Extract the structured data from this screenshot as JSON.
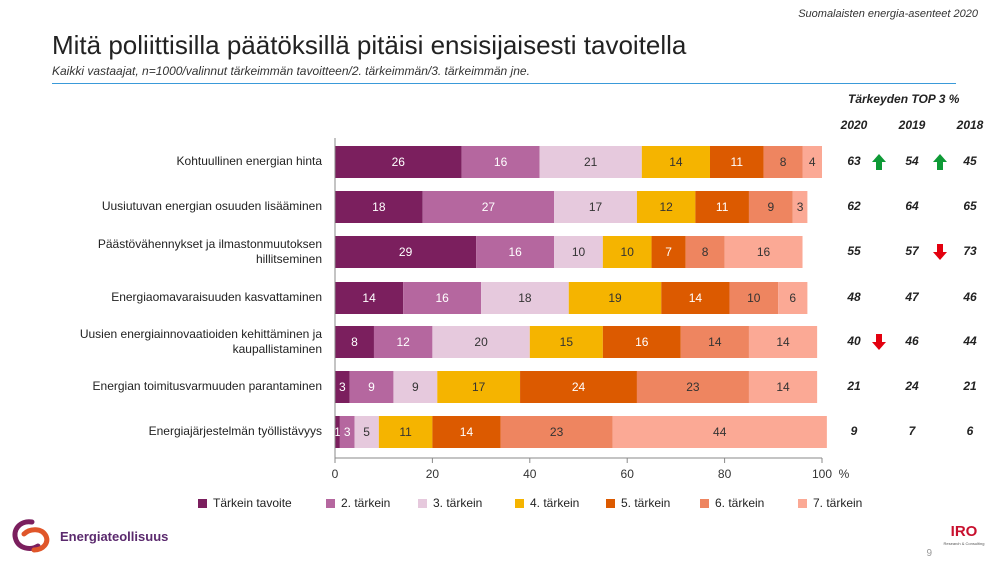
{
  "header": {
    "report_name": "Suomalaisten energia-asenteet 2020",
    "title": "Mitä poliittisilla päätöksillä pitäisi ensisijaisesti tavoitella",
    "subtitle": "Kaikki vastaajat, n=1000/valinnut tärkeimmän tavoitteen/2. tärkeimmän/3. tärkeimmän jne."
  },
  "chart_data": {
    "type": "bar",
    "orientation": "horizontal-stacked",
    "categories": [
      "Kohtuullinen energian hinta",
      "Uusiutuvan energian osuuden lisääminen",
      "Päästövähennykset ja ilmastonmuutoksen hillitseminen",
      "Energiaomavaraisuuden kasvattaminen",
      "Uusien energiainnovaatioiden kehittäminen ja kaupallistaminen",
      "Energian toimitusvarmuuden parantaminen",
      "Energiajärjestelmän työllistävyys"
    ],
    "series": [
      {
        "name": "Tärkein tavoite",
        "color": "#7b1f5e",
        "values": [
          26,
          18,
          29,
          14,
          8,
          3,
          1
        ]
      },
      {
        "name": "2. tärkein",
        "color": "#b5679f",
        "values": [
          16,
          27,
          16,
          16,
          12,
          9,
          3
        ]
      },
      {
        "name": "3. tärkein",
        "color": "#e6c9dd",
        "values": [
          21,
          17,
          10,
          18,
          20,
          9,
          5
        ]
      },
      {
        "name": "4. tärkein",
        "color": "#f5b400",
        "values": [
          14,
          12,
          10,
          19,
          15,
          17,
          11
        ]
      },
      {
        "name": "5. tärkein",
        "color": "#dc5a00",
        "values": [
          11,
          11,
          7,
          14,
          16,
          24,
          14
        ]
      },
      {
        "name": "6. tärkein",
        "color": "#ee8560",
        "values": [
          8,
          9,
          8,
          10,
          14,
          23,
          23
        ]
      },
      {
        "name": "7. tärkein",
        "color": "#fba995",
        "values": [
          4,
          3,
          16,
          6,
          14,
          14,
          44
        ]
      }
    ],
    "x_ticks": [
      "0",
      "20",
      "40",
      "60",
      "80",
      "100"
    ],
    "x_unit": "%",
    "xlim": [
      0,
      100
    ],
    "legend_position": "bottom",
    "grid": false,
    "label_colors": {
      "dark_series_label": "#ffffff",
      "light_series_label": "#333333"
    }
  },
  "top3": {
    "title": "Tärkeyden TOP 3 %",
    "years": [
      "2020",
      "2019",
      "2018"
    ],
    "rows": [
      {
        "values": [
          "63",
          "54",
          "45"
        ],
        "arrows": [
          "up",
          "up"
        ]
      },
      {
        "values": [
          "62",
          "64",
          "65"
        ],
        "arrows": [
          "",
          ""
        ]
      },
      {
        "values": [
          "55",
          "57",
          "73"
        ],
        "arrows": [
          "",
          "down"
        ]
      },
      {
        "values": [
          "48",
          "47",
          "46"
        ],
        "arrows": [
          "",
          ""
        ]
      },
      {
        "values": [
          "40",
          "46",
          "44"
        ],
        "arrows": [
          "down",
          ""
        ]
      },
      {
        "values": [
          "21",
          "24",
          "21"
        ],
        "arrows": [
          "",
          ""
        ]
      },
      {
        "values": [
          "9",
          "7",
          "6"
        ],
        "arrows": [
          "",
          ""
        ]
      }
    ],
    "up_color": "#0e9a36",
    "down_color": "#e3000f"
  },
  "footer": {
    "logo_text": "Energiateollisuus",
    "logo_icon": "energiateollisuus-logo-icon",
    "iro_logo_text": "IRO",
    "iro_logo_subtext": "Research & Consulting",
    "page_number": "9"
  }
}
